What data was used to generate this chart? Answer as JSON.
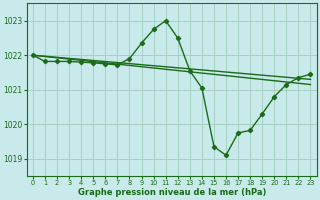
{
  "background_color": "#c8eaea",
  "grid_color": "#a0ccbc",
  "line_color": "#1a6b1a",
  "xlabel": "Graphe pression niveau de la mer (hPa)",
  "ylim": [
    1018.5,
    1023.5
  ],
  "xlim": [
    -0.5,
    23.5
  ],
  "yticks": [
    1019,
    1020,
    1021,
    1022,
    1023
  ],
  "xticks": [
    0,
    1,
    2,
    3,
    4,
    5,
    6,
    7,
    8,
    9,
    10,
    11,
    12,
    13,
    14,
    15,
    16,
    17,
    18,
    19,
    20,
    21,
    22,
    23
  ],
  "series": [
    {
      "x": [
        0,
        23
      ],
      "y": [
        1022.0,
        1021.3
      ],
      "has_markers": false,
      "lw": 1.0
    },
    {
      "x": [
        0,
        23
      ],
      "y": [
        1022.0,
        1021.15
      ],
      "has_markers": false,
      "lw": 1.0
    },
    {
      "x": [
        0,
        1,
        2,
        3,
        4,
        5,
        6,
        7,
        8,
        9,
        10,
        11,
        12,
        13,
        14,
        15,
        16,
        17,
        18,
        19,
        20,
        21,
        22,
        23
      ],
      "y": [
        1022.0,
        1021.82,
        1021.82,
        1021.82,
        1021.8,
        1021.78,
        1021.75,
        1021.72,
        1021.9,
        1022.35,
        1022.75,
        1023.0,
        1022.5,
        1021.55,
        1021.05,
        1019.35,
        1019.1,
        1019.75,
        1019.82,
        1020.3,
        1020.8,
        1021.15,
        1021.35,
        1021.45
      ],
      "has_markers": true,
      "lw": 1.0
    }
  ]
}
